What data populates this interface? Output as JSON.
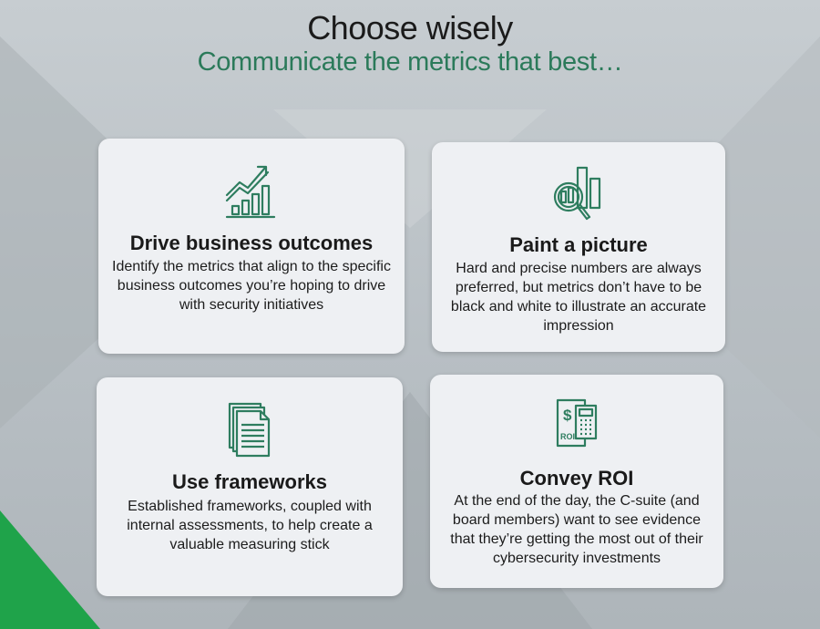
{
  "header": {
    "title": "Choose wisely",
    "subtitle": "Communicate the metrics that best…"
  },
  "cards": [
    {
      "title": "Drive business outcomes",
      "description": "Identify the metrics that align to the specific business outcomes you’re hoping to drive with security initiatives",
      "icon": "growth-chart-icon"
    },
    {
      "title": "Paint a picture",
      "description": "Hard and precise numbers are always preferred, but metrics don’t have to be black and white to illustrate an accurate impression",
      "icon": "magnifier-chart-icon"
    },
    {
      "title": "Use frameworks",
      "description": "Established frameworks, coupled with internal assessments, to help create a valuable measuring stick",
      "icon": "documents-icon"
    },
    {
      "title": "Convey ROI",
      "description": "At the end of the day, the C-suite (and board members) want to see evidence that they’re getting the most out of their cybersecurity investments",
      "icon": "roi-calculator-icon",
      "icon_text": "ROI"
    }
  ],
  "colors": {
    "accent_green": "#2b7a5a",
    "icon_green": "#2e7d5f",
    "corner_green": "#1fa34a",
    "card_background": "#eef0f3"
  }
}
